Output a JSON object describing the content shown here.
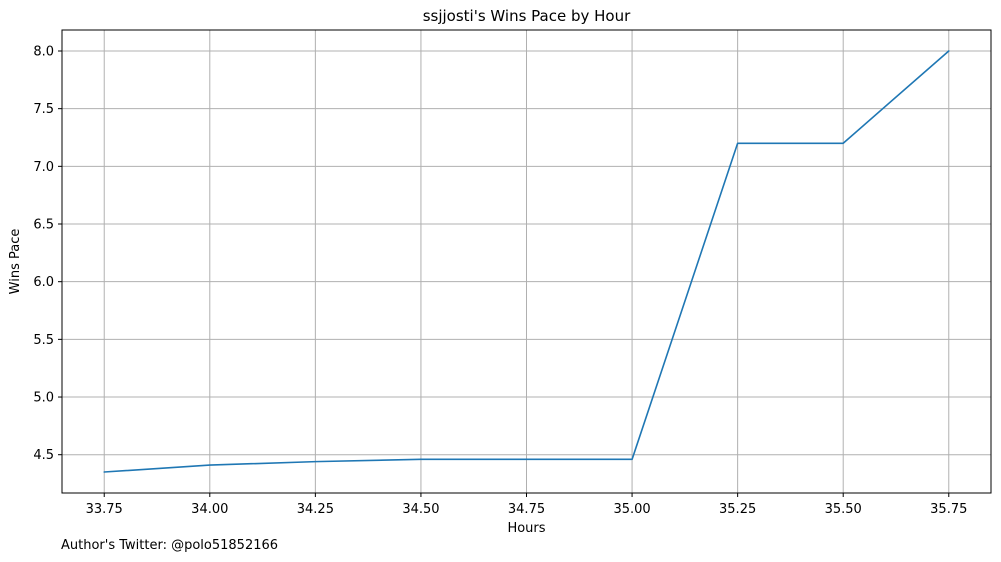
{
  "chart_data": {
    "type": "line",
    "title": "ssjjosti's Wins Pace by Hour",
    "xlabel": "Hours",
    "ylabel": "Wins Pace",
    "x": [
      33.75,
      34.0,
      34.25,
      34.5,
      34.75,
      35.0,
      35.25,
      35.5,
      35.75
    ],
    "series": [
      {
        "values": [
          4.35,
          4.41,
          4.44,
          4.46,
          4.46,
          4.46,
          7.2,
          7.2,
          8.0
        ],
        "color": "#1f77b4"
      }
    ],
    "xticks": [
      "33.75",
      "34.00",
      "34.25",
      "34.50",
      "34.75",
      "35.00",
      "35.25",
      "35.50",
      "35.75"
    ],
    "yticks": [
      "4.5",
      "5.0",
      "5.5",
      "6.0",
      "6.5",
      "7.0",
      "7.5",
      "8.0"
    ],
    "xlim": [
      33.65,
      35.85
    ],
    "ylim": [
      4.168,
      8.182
    ],
    "grid": true
  },
  "footer": {
    "author_note": "Author's Twitter: @polo51852166"
  }
}
